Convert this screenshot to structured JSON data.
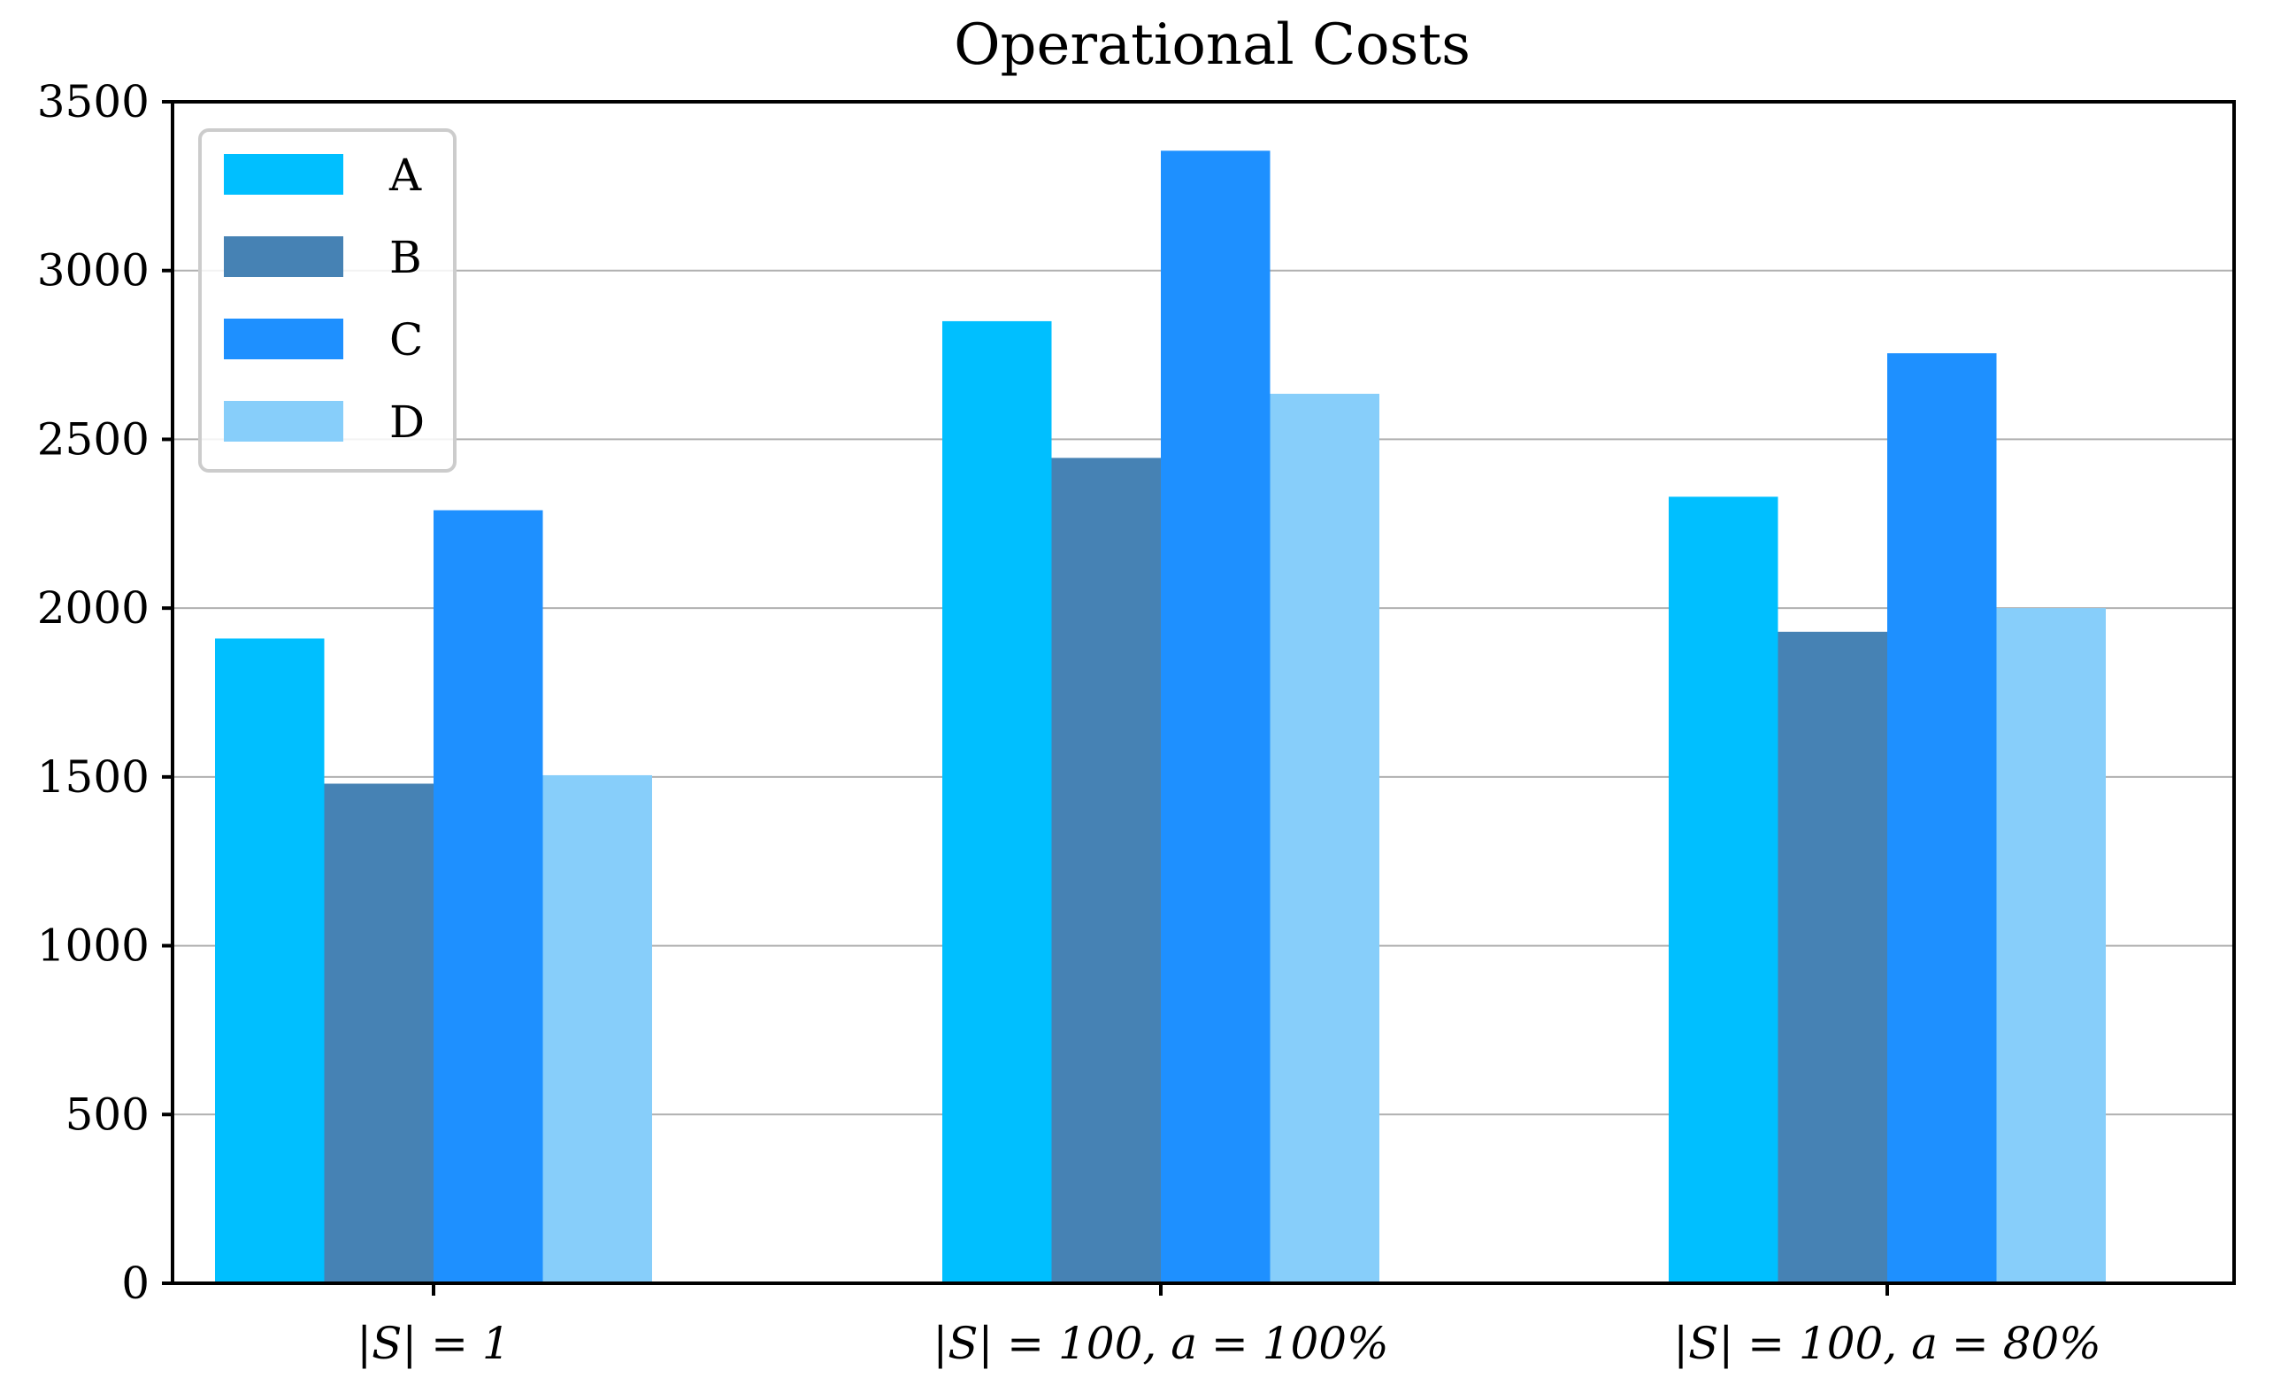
{
  "chart_data": {
    "type": "bar",
    "title": "Operational Costs",
    "xlabel": "",
    "ylabel": "",
    "categories": [
      "|S| = 1",
      "|S| = 100, a = 100%",
      "|S| = 100, a = 80%"
    ],
    "series": [
      {
        "name": "A",
        "color": "#00BFFF",
        "values": [
          1910,
          2850,
          2330
        ]
      },
      {
        "name": "B",
        "color": "#4682B4",
        "values": [
          1480,
          2445,
          1930
        ]
      },
      {
        "name": "C",
        "color": "#1E90FF",
        "values": [
          2290,
          3355,
          2755
        ]
      },
      {
        "name": "D",
        "color": "#87CEFA",
        "values": [
          1505,
          2635,
          2000
        ]
      }
    ],
    "ylim": [
      0,
      3500
    ],
    "yticks": [
      0,
      500,
      1000,
      1500,
      2000,
      2500,
      3000,
      3500
    ],
    "grid": "horizontal",
    "legend_position": "top-left"
  }
}
